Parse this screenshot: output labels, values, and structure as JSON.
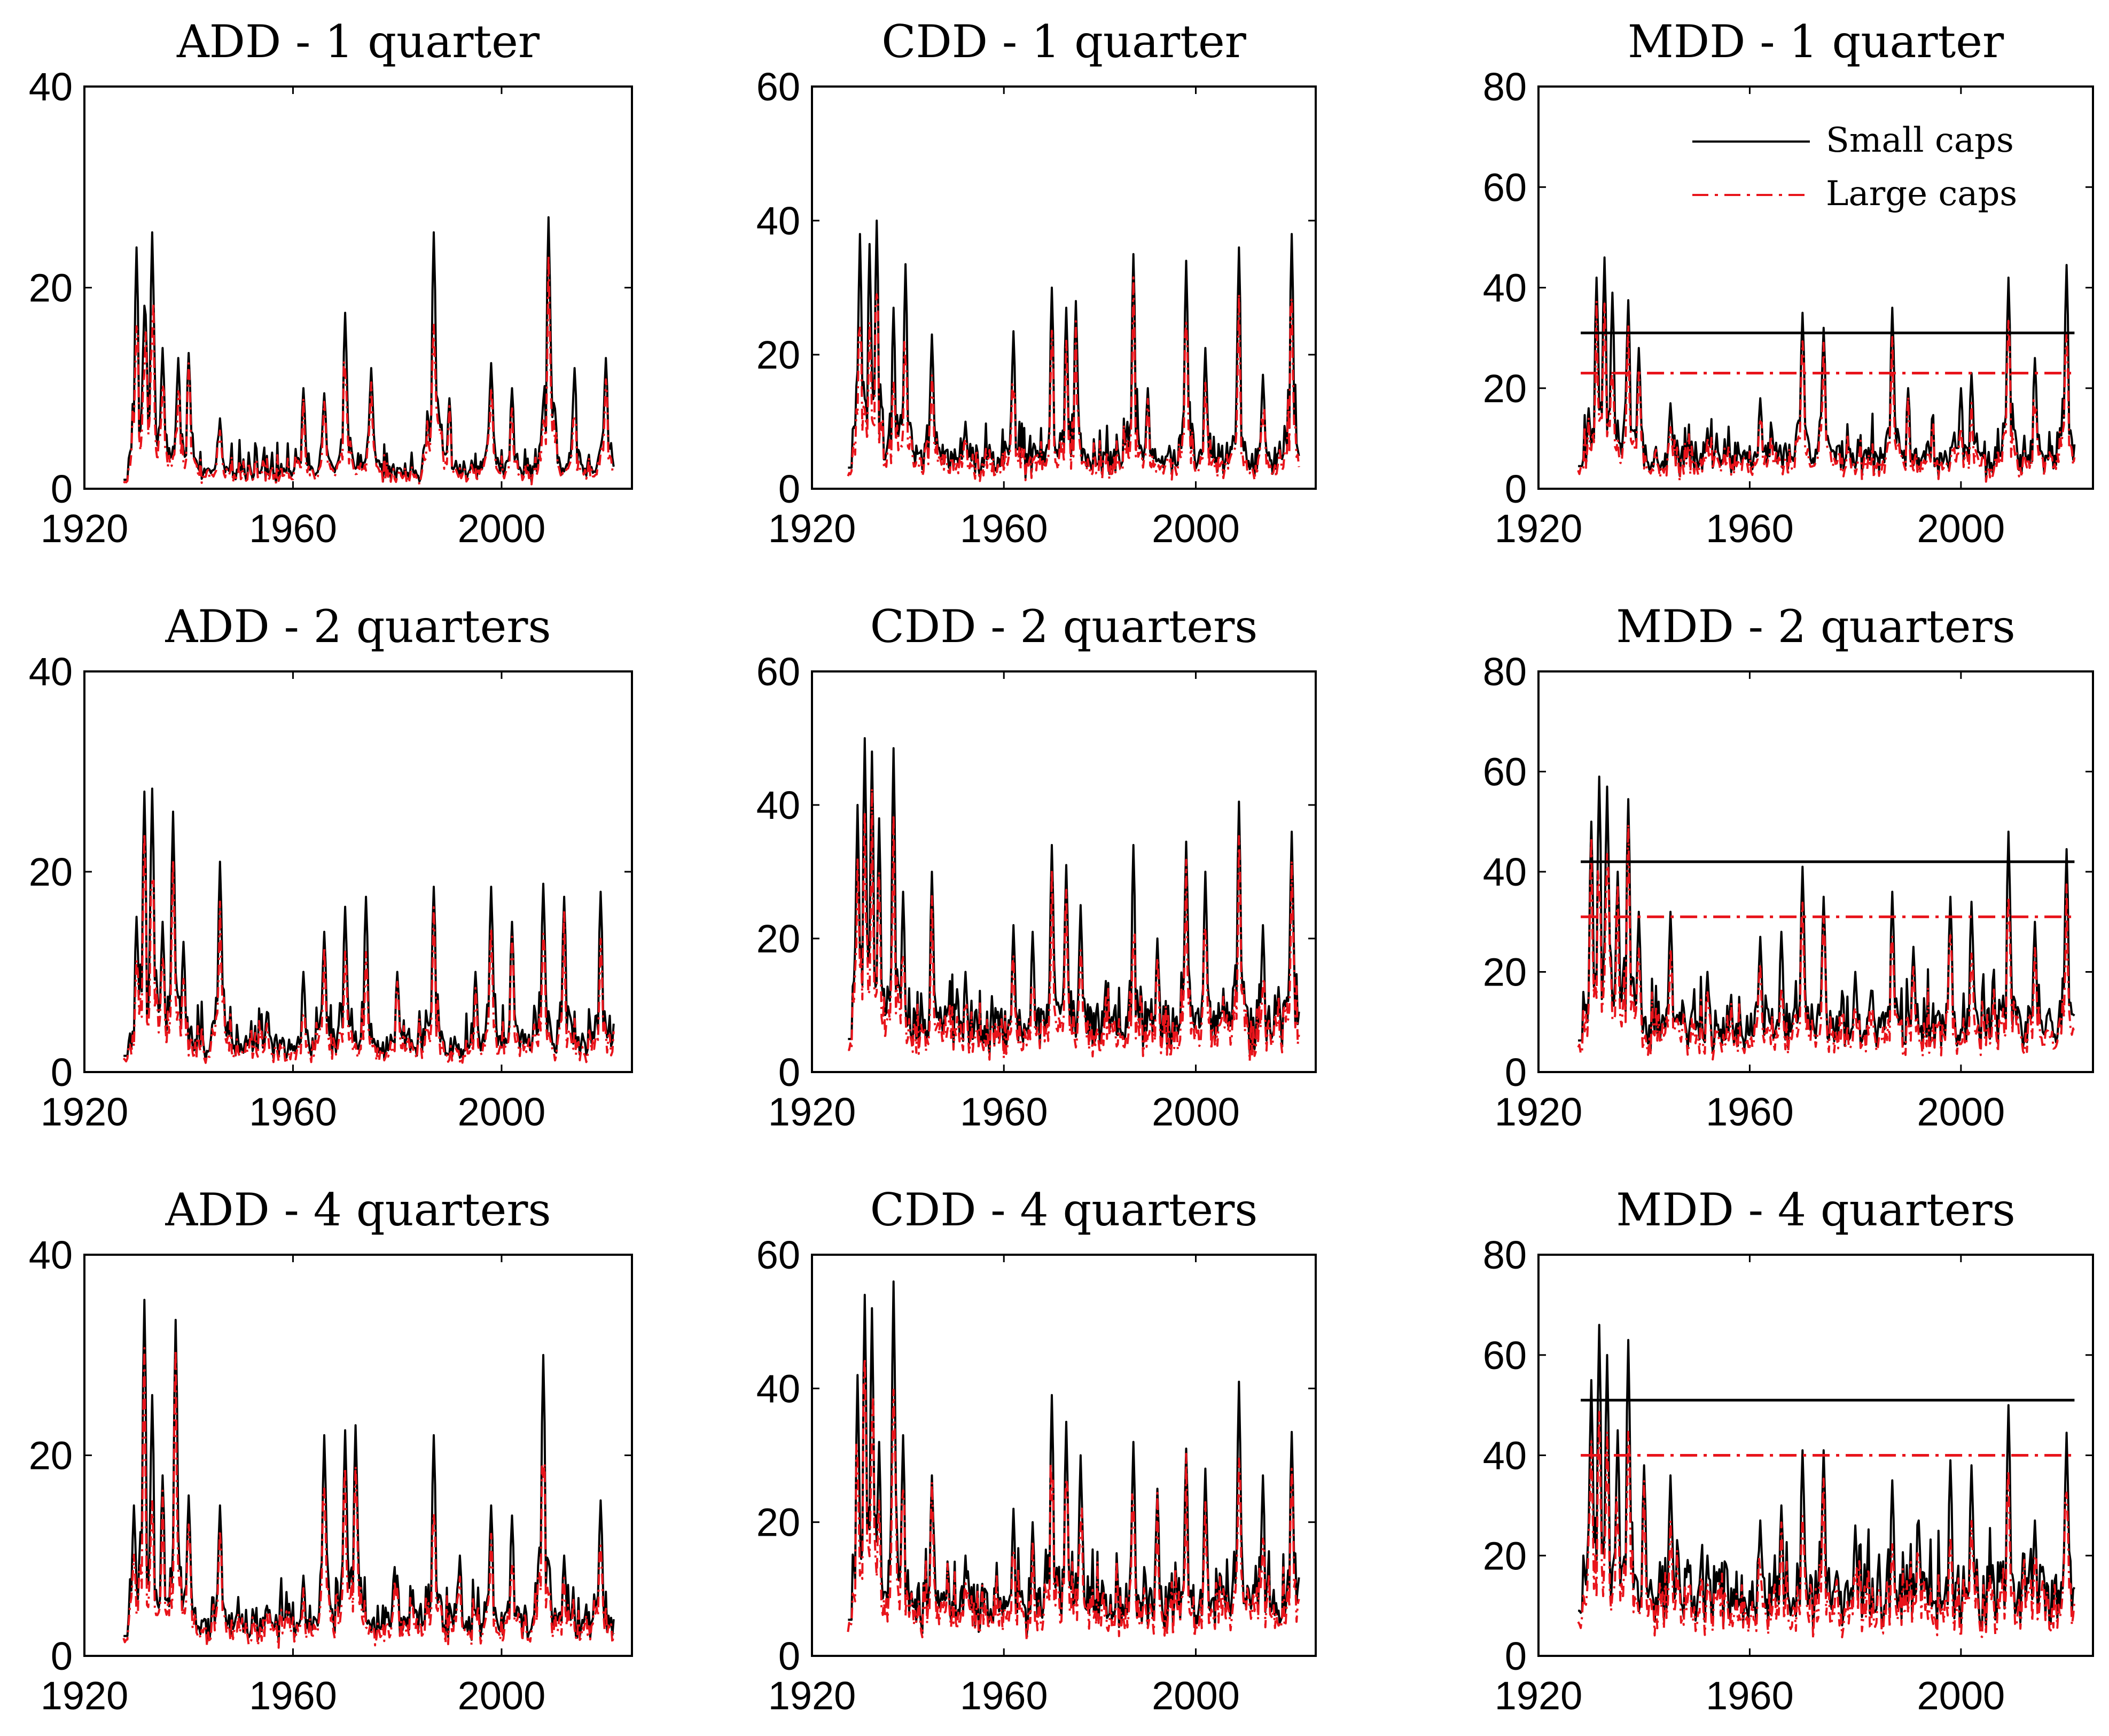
{
  "figure": {
    "legend": {
      "small": "Small caps",
      "large": "Large caps"
    },
    "colors": {
      "small": "#000000",
      "large": "#e8141b",
      "axes": "#000000"
    }
  },
  "chart_data": [
    {
      "id": "add-1q",
      "type": "line",
      "title": "ADD - 1 quarter",
      "xlim": [
        1920,
        2025
      ],
      "xticks": [
        1920,
        1960,
        2000
      ],
      "ylim": [
        0,
        40
      ],
      "yticks": [
        0,
        20,
        40
      ],
      "baseline": 1,
      "noise": 0.9,
      "spikes": [
        [
          1930,
          24
        ],
        [
          1931.6,
          20
        ],
        [
          1933,
          25.5
        ],
        [
          1935,
          14
        ],
        [
          1938,
          13
        ],
        [
          1940,
          13.5
        ],
        [
          1946,
          7
        ],
        [
          1962,
          10
        ],
        [
          1966,
          9.5
        ],
        [
          1970,
          17.5
        ],
        [
          1975,
          12
        ],
        [
          1987,
          25.5
        ],
        [
          1990,
          9
        ],
        [
          1998,
          12.5
        ],
        [
          2002,
          10
        ],
        [
          2009,
          27
        ],
        [
          2014,
          12
        ],
        [
          2020,
          13
        ]
      ],
      "series": [
        {
          "name": "Small caps",
          "scale": 1.0
        },
        {
          "name": "Large caps",
          "scale": 0.82
        }
      ]
    },
    {
      "id": "cdd-1q",
      "type": "line",
      "title": "CDD - 1 quarter",
      "xlim": [
        1920,
        2025
      ],
      "xticks": [
        1920,
        1960,
        2000
      ],
      "ylim": [
        0,
        60
      ],
      "yticks": [
        0,
        20,
        40,
        60
      ],
      "baseline": 3.5,
      "noise": 1.3,
      "spikes": [
        [
          1930,
          38
        ],
        [
          1932,
          36.5
        ],
        [
          1933.5,
          40
        ],
        [
          1937,
          27
        ],
        [
          1939.5,
          33.5
        ],
        [
          1945,
          23
        ],
        [
          1952,
          10
        ],
        [
          1962,
          23.5
        ],
        [
          1970,
          30
        ],
        [
          1973,
          27
        ],
        [
          1975,
          28
        ],
        [
          1987,
          35
        ],
        [
          1990,
          15
        ],
        [
          1998,
          34
        ],
        [
          2002,
          21
        ],
        [
          2009,
          36
        ],
        [
          2014,
          17
        ],
        [
          2020,
          38
        ]
      ],
      "series": [
        {
          "name": "Small caps",
          "scale": 1.0
        },
        {
          "name": "Large caps",
          "scale": 0.8
        }
      ]
    },
    {
      "id": "mdd-1q",
      "type": "line",
      "title": "MDD - 1 quarter",
      "xlim": [
        1920,
        2025
      ],
      "xticks": [
        1920,
        1960,
        2000
      ],
      "ylim": [
        0,
        80
      ],
      "yticks": [
        0,
        20,
        40,
        60,
        80
      ],
      "baseline": 5,
      "noise": 1.8,
      "spikes": [
        [
          1929.5,
          16
        ],
        [
          1931,
          42
        ],
        [
          1932.5,
          46
        ],
        [
          1934,
          39
        ],
        [
          1937,
          37.5
        ],
        [
          1939,
          28
        ],
        [
          1945,
          17
        ],
        [
          1952,
          12
        ],
        [
          1962,
          18
        ],
        [
          1970,
          35
        ],
        [
          1974,
          32
        ],
        [
          1987,
          36
        ],
        [
          1990,
          20
        ],
        [
          2000,
          20
        ],
        [
          2002,
          23
        ],
        [
          2009,
          42
        ],
        [
          2014,
          26
        ],
        [
          2020,
          44.5
        ]
      ],
      "series": [
        {
          "name": "Small caps",
          "scale": 1.0,
          "mean": 31
        },
        {
          "name": "Large caps",
          "scale": 0.82,
          "mean": 23
        }
      ],
      "legend": "top-right"
    },
    {
      "id": "add-2q",
      "type": "line",
      "title": "ADD - 2 quarters",
      "xlim": [
        1920,
        2025
      ],
      "xticks": [
        1920,
        1960,
        2000
      ],
      "ylim": [
        0,
        40
      ],
      "yticks": [
        0,
        20,
        40
      ],
      "baseline": 1.8,
      "noise": 1.2,
      "spikes": [
        [
          1930,
          15.5
        ],
        [
          1931.5,
          28
        ],
        [
          1933,
          28.3
        ],
        [
          1935,
          15
        ],
        [
          1937,
          26
        ],
        [
          1939,
          13
        ],
        [
          1946,
          21
        ],
        [
          1955,
          6
        ],
        [
          1962,
          10
        ],
        [
          1966,
          14
        ],
        [
          1970,
          16.5
        ],
        [
          1974,
          17.5
        ],
        [
          1980,
          10
        ],
        [
          1987,
          18.5
        ],
        [
          1995,
          10
        ],
        [
          1998,
          18.5
        ],
        [
          2002,
          15
        ],
        [
          2008,
          18.8
        ],
        [
          2012,
          17.5
        ],
        [
          2019,
          18
        ]
      ],
      "series": [
        {
          "name": "Small caps",
          "scale": 1.0
        },
        {
          "name": "Large caps",
          "scale": 0.8
        }
      ]
    },
    {
      "id": "cdd-2q",
      "type": "line",
      "title": "CDD - 2 quarters",
      "xlim": [
        1920,
        2025
      ],
      "xticks": [
        1920,
        1960,
        2000
      ],
      "ylim": [
        0,
        60
      ],
      "yticks": [
        0,
        20,
        40,
        60
      ],
      "baseline": 5.5,
      "noise": 1.8,
      "spikes": [
        [
          1929.5,
          40
        ],
        [
          1931,
          50
        ],
        [
          1932.5,
          48
        ],
        [
          1934,
          38
        ],
        [
          1937,
          48.5
        ],
        [
          1939,
          27
        ],
        [
          1945,
          30
        ],
        [
          1952,
          15
        ],
        [
          1962,
          22
        ],
        [
          1966,
          21
        ],
        [
          1970,
          34
        ],
        [
          1973,
          31
        ],
        [
          1976,
          25
        ],
        [
          1987,
          34
        ],
        [
          1992,
          20
        ],
        [
          1998,
          34.5
        ],
        [
          2002,
          30
        ],
        [
          2009,
          40.5
        ],
        [
          2014,
          22
        ],
        [
          2020,
          36
        ]
      ],
      "series": [
        {
          "name": "Small caps",
          "scale": 1.0
        },
        {
          "name": "Large caps",
          "scale": 0.82
        }
      ]
    },
    {
      "id": "mdd-2q",
      "type": "line",
      "title": "MDD - 2 quarters",
      "xlim": [
        1920,
        2025
      ],
      "xticks": [
        1920,
        1960,
        2000
      ],
      "ylim": [
        0,
        80
      ],
      "yticks": [
        0,
        20,
        40,
        60,
        80
      ],
      "baseline": 7,
      "noise": 2.5,
      "spikes": [
        [
          1928.5,
          16
        ],
        [
          1930,
          50
        ],
        [
          1931.5,
          59
        ],
        [
          1933,
          57
        ],
        [
          1935,
          40
        ],
        [
          1937,
          54.5
        ],
        [
          1939,
          32
        ],
        [
          1945,
          32
        ],
        [
          1952,
          20
        ],
        [
          1962,
          27
        ],
        [
          1966,
          28
        ],
        [
          1970,
          41
        ],
        [
          1974,
          35
        ],
        [
          1980,
          20
        ],
        [
          1987,
          36
        ],
        [
          1991,
          25
        ],
        [
          1998,
          35
        ],
        [
          2002,
          34
        ],
        [
          2009,
          48
        ],
        [
          2014,
          30
        ],
        [
          2020,
          44.5
        ]
      ],
      "series": [
        {
          "name": "Small caps",
          "scale": 1.0,
          "mean": 42
        },
        {
          "name": "Large caps",
          "scale": 0.82,
          "mean": 31
        }
      ]
    },
    {
      "id": "add-4q",
      "type": "line",
      "title": "ADD - 4 quarters",
      "xlim": [
        1920,
        2025
      ],
      "xticks": [
        1920,
        1960,
        2000
      ],
      "ylim": [
        0,
        40
      ],
      "yticks": [
        0,
        20,
        40
      ],
      "baseline": 2.2,
      "noise": 1.5,
      "spikes": [
        [
          1929.5,
          15
        ],
        [
          1931.5,
          35.5
        ],
        [
          1933,
          26
        ],
        [
          1935,
          18
        ],
        [
          1937.5,
          33.5
        ],
        [
          1940,
          16
        ],
        [
          1946,
          15
        ],
        [
          1955,
          5
        ],
        [
          1962,
          8
        ],
        [
          1966,
          22
        ],
        [
          1970,
          22.5
        ],
        [
          1972,
          23
        ],
        [
          1980,
          8
        ],
        [
          1987,
          22
        ],
        [
          1992,
          10
        ],
        [
          1998,
          15
        ],
        [
          2002,
          14
        ],
        [
          2008,
          30
        ],
        [
          2012,
          10
        ],
        [
          2019,
          15.5
        ]
      ],
      "series": [
        {
          "name": "Small caps",
          "scale": 1.0
        },
        {
          "name": "Large caps",
          "scale": 0.82
        }
      ]
    },
    {
      "id": "cdd-4q",
      "type": "line",
      "title": "CDD - 4 quarters",
      "xlim": [
        1920,
        2025
      ],
      "xticks": [
        1920,
        1960,
        2000
      ],
      "ylim": [
        0,
        60
      ],
      "yticks": [
        0,
        20,
        40,
        60
      ],
      "baseline": 6,
      "noise": 2.2,
      "spikes": [
        [
          1929.5,
          42
        ],
        [
          1931,
          54
        ],
        [
          1932.5,
          52
        ],
        [
          1934,
          32
        ],
        [
          1937,
          56
        ],
        [
          1939,
          33
        ],
        [
          1945,
          27
        ],
        [
          1952,
          15
        ],
        [
          1962,
          22
        ],
        [
          1966,
          20
        ],
        [
          1970,
          39
        ],
        [
          1973,
          35
        ],
        [
          1976,
          30
        ],
        [
          1987,
          32
        ],
        [
          1992,
          25
        ],
        [
          1998,
          31
        ],
        [
          2002,
          28
        ],
        [
          2009,
          41
        ],
        [
          2014,
          27
        ],
        [
          2020,
          33.5
        ]
      ],
      "series": [
        {
          "name": "Small caps",
          "scale": 1.0
        },
        {
          "name": "Large caps",
          "scale": 0.85
        }
      ]
    },
    {
      "id": "mdd-4q",
      "type": "line",
      "title": "MDD - 4 quarters",
      "xlim": [
        1920,
        2025
      ],
      "xticks": [
        1920,
        1960,
        2000
      ],
      "ylim": [
        0,
        80
      ],
      "yticks": [
        0,
        20,
        40,
        60,
        80
      ],
      "baseline": 10,
      "noise": 3,
      "spikes": [
        [
          1928.5,
          20
        ],
        [
          1930,
          55
        ],
        [
          1931.5,
          66
        ],
        [
          1933,
          60
        ],
        [
          1935,
          45
        ],
        [
          1937,
          63
        ],
        [
          1940,
          38
        ],
        [
          1945,
          36
        ],
        [
          1952,
          20
        ],
        [
          1962,
          27
        ],
        [
          1966,
          30
        ],
        [
          1970,
          41
        ],
        [
          1974,
          41
        ],
        [
          1980,
          26
        ],
        [
          1987,
          35
        ],
        [
          1992,
          27
        ],
        [
          1998,
          39
        ],
        [
          2002,
          38
        ],
        [
          2009,
          50
        ],
        [
          2014,
          27
        ],
        [
          2020,
          44.5
        ]
      ],
      "series": [
        {
          "name": "Small caps",
          "scale": 1.0,
          "mean": 51
        },
        {
          "name": "Large caps",
          "scale": 0.82,
          "mean": 40
        }
      ]
    }
  ]
}
